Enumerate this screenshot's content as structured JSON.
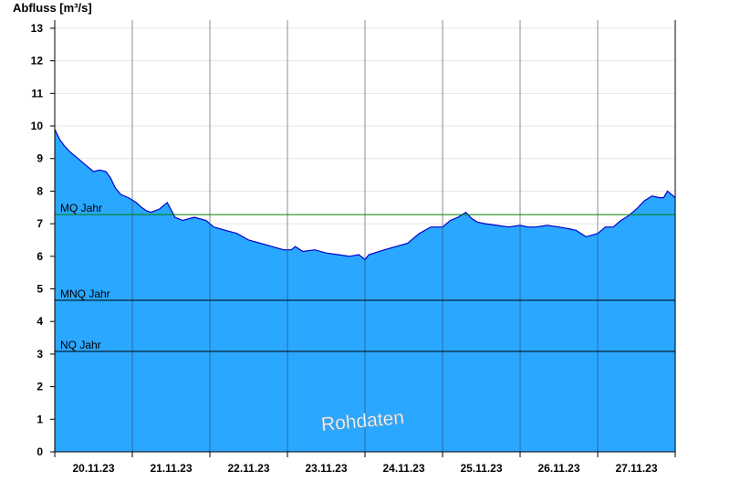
{
  "chart_data": {
    "type": "area",
    "ylabel": "Abfluss [m³/s]",
    "ylim": [
      0,
      13.25
    ],
    "y_ticks": [
      "0",
      "1",
      "2",
      "3",
      "4",
      "5",
      "6",
      "7",
      "8",
      "9",
      "10",
      "11",
      "12",
      "13"
    ],
    "x_ticks": [
      "20.11.23",
      "21.11.23",
      "22.11.23",
      "23.11.23",
      "24.11.23",
      "25.11.23",
      "26.11.23",
      "27.11.23"
    ],
    "grid": true,
    "watermark": "Rohdaten",
    "reference_lines": [
      {
        "label": "MQ Jahr",
        "value": 7.28,
        "color": "#008000"
      },
      {
        "label": "MNQ Jahr",
        "value": 4.65,
        "color": "#000000"
      },
      {
        "label": "NQ Jahr",
        "value": 3.08,
        "color": "#000000"
      }
    ],
    "series": [
      {
        "color": "#2aa7ff",
        "line_color": "#0000cc",
        "x_days": [
          0,
          0.06,
          0.12,
          0.2,
          0.3,
          0.4,
          0.5,
          0.58,
          0.66,
          0.72,
          0.78,
          0.85,
          0.95,
          1.05,
          1.12,
          1.18,
          1.24,
          1.35,
          1.45,
          1.55,
          1.65,
          1.8,
          1.95,
          2.05,
          2.2,
          2.35,
          2.5,
          2.65,
          2.8,
          2.95,
          3.05,
          3.1,
          3.2,
          3.35,
          3.5,
          3.65,
          3.8,
          3.92,
          4.0,
          4.05,
          4.12,
          4.25,
          4.4,
          4.55,
          4.7,
          4.85,
          5.0,
          5.1,
          5.2,
          5.3,
          5.38,
          5.45,
          5.55,
          5.7,
          5.85,
          6.0,
          6.1,
          6.2,
          6.35,
          6.5,
          6.62,
          6.72,
          6.85,
          7.0,
          7.1,
          7.2,
          7.3,
          7.4,
          7.5,
          7.6,
          7.7,
          7.8,
          7.85,
          7.9,
          7.95,
          8.0
        ],
        "values": [
          9.9,
          9.6,
          9.4,
          9.2,
          9.0,
          8.8,
          8.6,
          8.65,
          8.6,
          8.4,
          8.1,
          7.9,
          7.8,
          7.65,
          7.5,
          7.4,
          7.35,
          7.45,
          7.65,
          7.2,
          7.1,
          7.2,
          7.1,
          6.9,
          6.8,
          6.7,
          6.5,
          6.4,
          6.3,
          6.2,
          6.2,
          6.3,
          6.15,
          6.2,
          6.1,
          6.05,
          6.0,
          6.05,
          5.9,
          6.05,
          6.1,
          6.2,
          6.3,
          6.4,
          6.7,
          6.9,
          6.9,
          7.1,
          7.2,
          7.35,
          7.15,
          7.05,
          7.0,
          6.95,
          6.9,
          6.95,
          6.9,
          6.9,
          6.95,
          6.9,
          6.85,
          6.8,
          6.6,
          6.7,
          6.9,
          6.9,
          7.1,
          7.25,
          7.45,
          7.7,
          7.85,
          7.8,
          7.8,
          8.0,
          7.9,
          7.8
        ]
      }
    ]
  }
}
